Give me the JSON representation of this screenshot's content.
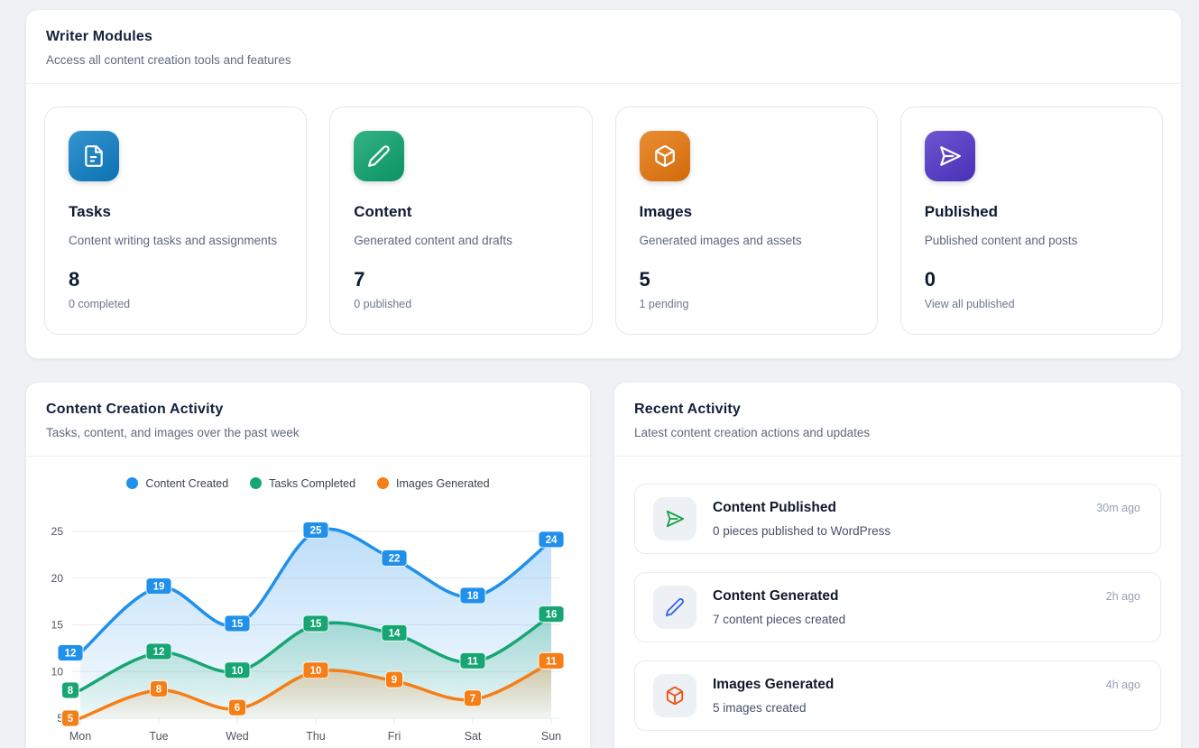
{
  "writer_modules": {
    "title": "Writer Modules",
    "subtitle": "Access all content creation tools and features",
    "cards": [
      {
        "title": "Tasks",
        "description": "Content writing tasks and assignments",
        "count": "8",
        "sub": "0 completed",
        "color": "#0d7fc6",
        "icon": "file-text"
      },
      {
        "title": "Content",
        "description": "Generated content and drafts",
        "count": "7",
        "sub": "0 published",
        "color": "#0ca46d",
        "icon": "pencil"
      },
      {
        "title": "Images",
        "description": "Generated images and assets",
        "count": "5",
        "sub": "1 pending",
        "color": "#e8770b",
        "icon": "box"
      },
      {
        "title": "Published",
        "description": "Published content and posts",
        "count": "0",
        "sub": "View all published",
        "color": "#5036c9",
        "icon": "send"
      }
    ]
  },
  "activity_chart": {
    "title": "Content Creation Activity",
    "subtitle": "Tasks, content, and images over the past week"
  },
  "chart_data": {
    "type": "line",
    "x": [
      "Mon",
      "Tue",
      "Wed",
      "Thu",
      "Fri",
      "Sat",
      "Sun"
    ],
    "series": [
      {
        "name": "Content Created",
        "color": "#2090ea",
        "values": [
          12,
          19,
          15,
          25,
          22,
          18,
          24
        ]
      },
      {
        "name": "Tasks Completed",
        "color": "#17a673",
        "values": [
          8,
          12,
          10,
          15,
          14,
          11,
          16
        ]
      },
      {
        "name": "Images Generated",
        "color": "#f57e16",
        "values": [
          5,
          8,
          6,
          10,
          9,
          7,
          11
        ]
      }
    ],
    "ylim": [
      5,
      25
    ],
    "yticks": [
      5,
      10,
      15,
      20,
      25
    ],
    "grid": "horizontal",
    "legend_position": "top-center",
    "smooth": true,
    "area_fill": true,
    "point_labels": true
  },
  "recent_activity": {
    "title": "Recent Activity",
    "subtitle": "Latest content creation actions and updates",
    "items": [
      {
        "title": "Content Published",
        "description": "0 pieces published to WordPress",
        "time": "30m ago",
        "icon": "send",
        "icon_color": "#17a34a"
      },
      {
        "title": "Content Generated",
        "description": "7 content pieces created",
        "time": "2h ago",
        "icon": "pencil",
        "icon_color": "#3563e9"
      },
      {
        "title": "Images Generated",
        "description": "5 images created",
        "time": "4h ago",
        "icon": "box",
        "icon_color": "#ea530f"
      }
    ]
  }
}
